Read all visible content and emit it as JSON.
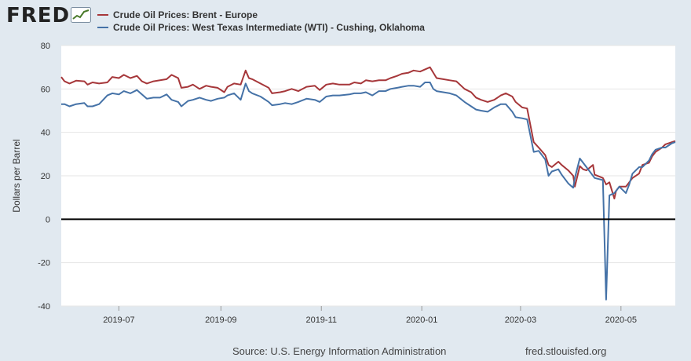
{
  "header": {
    "logo_text": "FRED",
    "logo_icon": "trend-chart-icon"
  },
  "colors": {
    "brent": "#a6373a",
    "wti": "#4572a7",
    "zero_line": "#000000",
    "background": "#e1e9f0"
  },
  "footer": {
    "source": "Source: U.S. Energy Information Administration",
    "site": "fred.stlouisfed.org"
  },
  "chart_data": {
    "type": "line",
    "ylabel": "Dollars per Barrel",
    "ylim": [
      -40,
      80
    ],
    "yticks": [
      "80",
      "60",
      "40",
      "20",
      "0",
      "-20",
      "-40"
    ],
    "xlim": [
      "2019-05-27",
      "2020-06-03"
    ],
    "xticks": [
      {
        "date": "2019-07-01",
        "label": "2019-07"
      },
      {
        "date": "2019-09-01",
        "label": "2019-09"
      },
      {
        "date": "2019-11-01",
        "label": "2019-11"
      },
      {
        "date": "2020-01-01",
        "label": "2020-01"
      },
      {
        "date": "2020-03-01",
        "label": "2020-03"
      },
      {
        "date": "2020-05-01",
        "label": "2020-05"
      }
    ],
    "grid": "horizontal",
    "legend_position": "top-left",
    "series": [
      {
        "name": "Crude Oil Prices: Brent - Europe",
        "points": [
          [
            "2019-05-27",
            65.5
          ],
          [
            "2019-05-29",
            63.5
          ],
          [
            "2019-06-01",
            62.5
          ],
          [
            "2019-06-05",
            63.8
          ],
          [
            "2019-06-10",
            63.5
          ],
          [
            "2019-06-12",
            62
          ],
          [
            "2019-06-15",
            63
          ],
          [
            "2019-06-19",
            62.5
          ],
          [
            "2019-06-24",
            63
          ],
          [
            "2019-06-27",
            65.5
          ],
          [
            "2019-07-01",
            65
          ],
          [
            "2019-07-04",
            66.5
          ],
          [
            "2019-07-08",
            65
          ],
          [
            "2019-07-12",
            66
          ],
          [
            "2019-07-15",
            63.5
          ],
          [
            "2019-07-18",
            62.5
          ],
          [
            "2019-07-22",
            63.5
          ],
          [
            "2019-07-26",
            64
          ],
          [
            "2019-07-30",
            64.5
          ],
          [
            "2019-08-02",
            66.5
          ],
          [
            "2019-08-06",
            65
          ],
          [
            "2019-08-08",
            60.5
          ],
          [
            "2019-08-12",
            61
          ],
          [
            "2019-08-15",
            62
          ],
          [
            "2019-08-19",
            60
          ],
          [
            "2019-08-23",
            61.5
          ],
          [
            "2019-08-26",
            61
          ],
          [
            "2019-08-30",
            60.5
          ],
          [
            "2019-09-03",
            58.5
          ],
          [
            "2019-09-05",
            61
          ],
          [
            "2019-09-09",
            62.5
          ],
          [
            "2019-09-13",
            62
          ],
          [
            "2019-09-16",
            68.5
          ],
          [
            "2019-09-18",
            65
          ],
          [
            "2019-09-20",
            64.5
          ],
          [
            "2019-09-25",
            62.5
          ],
          [
            "2019-09-30",
            60.5
          ],
          [
            "2019-10-02",
            58
          ],
          [
            "2019-10-07",
            58.5
          ],
          [
            "2019-10-10",
            59
          ],
          [
            "2019-10-14",
            60
          ],
          [
            "2019-10-18",
            59
          ],
          [
            "2019-10-23",
            61
          ],
          [
            "2019-10-28",
            61.5
          ],
          [
            "2019-10-31",
            59.5
          ],
          [
            "2019-11-04",
            62
          ],
          [
            "2019-11-08",
            62.5
          ],
          [
            "2019-11-12",
            62
          ],
          [
            "2019-11-18",
            62
          ],
          [
            "2019-11-21",
            63
          ],
          [
            "2019-11-25",
            62.5
          ],
          [
            "2019-11-28",
            64
          ],
          [
            "2019-12-02",
            63.5
          ],
          [
            "2019-12-06",
            64
          ],
          [
            "2019-12-10",
            64
          ],
          [
            "2019-12-13",
            65
          ],
          [
            "2019-12-17",
            66
          ],
          [
            "2019-12-20",
            67
          ],
          [
            "2019-12-24",
            67.5
          ],
          [
            "2019-12-27",
            68.5
          ],
          [
            "2019-12-31",
            68
          ],
          [
            "2020-01-03",
            69
          ],
          [
            "2020-01-06",
            70
          ],
          [
            "2020-01-08",
            67.5
          ],
          [
            "2020-01-10",
            65
          ],
          [
            "2020-01-14",
            64.5
          ],
          [
            "2020-01-18",
            64
          ],
          [
            "2020-01-22",
            63.5
          ],
          [
            "2020-01-27",
            60
          ],
          [
            "2020-01-31",
            58.5
          ],
          [
            "2020-02-03",
            56
          ],
          [
            "2020-02-06",
            55
          ],
          [
            "2020-02-10",
            54
          ],
          [
            "2020-02-14",
            55
          ],
          [
            "2020-02-18",
            57
          ],
          [
            "2020-02-21",
            58
          ],
          [
            "2020-02-25",
            56.5
          ],
          [
            "2020-02-27",
            54
          ],
          [
            "2020-03-02",
            51.5
          ],
          [
            "2020-03-05",
            51
          ],
          [
            "2020-03-09",
            35.5
          ],
          [
            "2020-03-12",
            33
          ],
          [
            "2020-03-16",
            29.5
          ],
          [
            "2020-03-18",
            25
          ],
          [
            "2020-03-20",
            24
          ],
          [
            "2020-03-24",
            26.5
          ],
          [
            "2020-03-26",
            25
          ],
          [
            "2020-03-30",
            22.5
          ],
          [
            "2020-04-02",
            20
          ],
          [
            "2020-04-03",
            15
          ],
          [
            "2020-04-06",
            24.5
          ],
          [
            "2020-04-08",
            23
          ],
          [
            "2020-04-10",
            22.5
          ],
          [
            "2020-04-14",
            25
          ],
          [
            "2020-04-15",
            20.5
          ],
          [
            "2020-04-20",
            19
          ],
          [
            "2020-04-22",
            16
          ],
          [
            "2020-04-24",
            17
          ],
          [
            "2020-04-27",
            9.5
          ],
          [
            "2020-04-28",
            13
          ],
          [
            "2020-04-30",
            15
          ],
          [
            "2020-05-04",
            15
          ],
          [
            "2020-05-06",
            17
          ],
          [
            "2020-05-08",
            19
          ],
          [
            "2020-05-12",
            21
          ],
          [
            "2020-05-14",
            25
          ],
          [
            "2020-05-18",
            26
          ],
          [
            "2020-05-20",
            29
          ],
          [
            "2020-05-22",
            31
          ],
          [
            "2020-05-26",
            33
          ],
          [
            "2020-05-28",
            34.5
          ],
          [
            "2020-06-01",
            35.5
          ],
          [
            "2020-06-03",
            36
          ]
        ]
      },
      {
        "name": "Crude Oil Prices: West Texas Intermediate (WTI) - Cushing, Oklahoma",
        "points": [
          [
            "2019-05-27",
            53
          ],
          [
            "2019-05-29",
            53
          ],
          [
            "2019-06-01",
            52
          ],
          [
            "2019-06-05",
            53
          ],
          [
            "2019-06-10",
            53.5
          ],
          [
            "2019-06-12",
            52
          ],
          [
            "2019-06-15",
            52
          ],
          [
            "2019-06-19",
            53
          ],
          [
            "2019-06-24",
            57
          ],
          [
            "2019-06-27",
            58
          ],
          [
            "2019-07-01",
            57.5
          ],
          [
            "2019-07-04",
            59
          ],
          [
            "2019-07-08",
            58
          ],
          [
            "2019-07-12",
            59.5
          ],
          [
            "2019-07-15",
            57.5
          ],
          [
            "2019-07-18",
            55.5
          ],
          [
            "2019-07-22",
            56
          ],
          [
            "2019-07-26",
            56
          ],
          [
            "2019-07-30",
            57.5
          ],
          [
            "2019-08-02",
            55
          ],
          [
            "2019-08-06",
            54
          ],
          [
            "2019-08-08",
            52
          ],
          [
            "2019-08-12",
            54.5
          ],
          [
            "2019-08-15",
            55
          ],
          [
            "2019-08-19",
            56
          ],
          [
            "2019-08-23",
            55
          ],
          [
            "2019-08-26",
            54.5
          ],
          [
            "2019-08-30",
            55.5
          ],
          [
            "2019-09-03",
            56
          ],
          [
            "2019-09-05",
            57
          ],
          [
            "2019-09-09",
            58
          ],
          [
            "2019-09-13",
            55
          ],
          [
            "2019-09-16",
            62.5
          ],
          [
            "2019-09-18",
            59
          ],
          [
            "2019-09-20",
            58
          ],
          [
            "2019-09-25",
            56.5
          ],
          [
            "2019-09-30",
            54
          ],
          [
            "2019-10-02",
            52.5
          ],
          [
            "2019-10-07",
            53
          ],
          [
            "2019-10-10",
            53.5
          ],
          [
            "2019-10-14",
            53
          ],
          [
            "2019-10-18",
            54
          ],
          [
            "2019-10-23",
            55.5
          ],
          [
            "2019-10-28",
            55
          ],
          [
            "2019-10-31",
            54
          ],
          [
            "2019-11-04",
            56.5
          ],
          [
            "2019-11-08",
            57
          ],
          [
            "2019-11-12",
            57
          ],
          [
            "2019-11-18",
            57.5
          ],
          [
            "2019-11-21",
            58
          ],
          [
            "2019-11-25",
            58
          ],
          [
            "2019-11-28",
            58.5
          ],
          [
            "2019-12-02",
            57
          ],
          [
            "2019-12-06",
            59
          ],
          [
            "2019-12-10",
            59
          ],
          [
            "2019-12-13",
            60
          ],
          [
            "2019-12-17",
            60.5
          ],
          [
            "2019-12-20",
            61
          ],
          [
            "2019-12-24",
            61.5
          ],
          [
            "2019-12-27",
            61.5
          ],
          [
            "2019-12-31",
            61
          ],
          [
            "2020-01-03",
            63
          ],
          [
            "2020-01-06",
            63
          ],
          [
            "2020-01-08",
            60
          ],
          [
            "2020-01-10",
            59
          ],
          [
            "2020-01-14",
            58.5
          ],
          [
            "2020-01-18",
            58
          ],
          [
            "2020-01-22",
            57
          ],
          [
            "2020-01-27",
            54
          ],
          [
            "2020-01-31",
            52
          ],
          [
            "2020-02-03",
            50.5
          ],
          [
            "2020-02-06",
            50
          ],
          [
            "2020-02-10",
            49.5
          ],
          [
            "2020-02-14",
            51.5
          ],
          [
            "2020-02-18",
            53
          ],
          [
            "2020-02-21",
            53
          ],
          [
            "2020-02-25",
            49.5
          ],
          [
            "2020-02-27",
            47
          ],
          [
            "2020-03-02",
            46.5
          ],
          [
            "2020-03-05",
            46
          ],
          [
            "2020-03-09",
            31
          ],
          [
            "2020-03-12",
            31.5
          ],
          [
            "2020-03-16",
            27.5
          ],
          [
            "2020-03-18",
            20
          ],
          [
            "2020-03-20",
            22
          ],
          [
            "2020-03-24",
            23
          ],
          [
            "2020-03-26",
            20.5
          ],
          [
            "2020-03-30",
            16.5
          ],
          [
            "2020-04-02",
            14.5
          ],
          [
            "2020-04-03",
            19
          ],
          [
            "2020-04-06",
            28
          ],
          [
            "2020-04-08",
            26
          ],
          [
            "2020-04-10",
            24
          ],
          [
            "2020-04-14",
            20
          ],
          [
            "2020-04-15",
            19
          ],
          [
            "2020-04-20",
            18
          ],
          [
            "2020-04-22",
            -37
          ],
          [
            "2020-04-24",
            11
          ],
          [
            "2020-04-27",
            12
          ],
          [
            "2020-04-28",
            13
          ],
          [
            "2020-04-30",
            15
          ],
          [
            "2020-05-04",
            12
          ],
          [
            "2020-05-06",
            16
          ],
          [
            "2020-05-08",
            21
          ],
          [
            "2020-05-12",
            24
          ],
          [
            "2020-05-14",
            24
          ],
          [
            "2020-05-18",
            27
          ],
          [
            "2020-05-20",
            30
          ],
          [
            "2020-05-22",
            32
          ],
          [
            "2020-05-26",
            33
          ],
          [
            "2020-05-28",
            33
          ],
          [
            "2020-06-01",
            35
          ],
          [
            "2020-06-03",
            35.5
          ]
        ]
      }
    ]
  }
}
